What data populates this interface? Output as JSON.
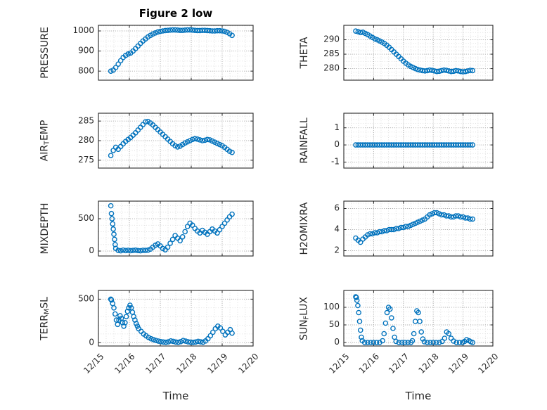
{
  "figure": {
    "title": "Figure 2 low",
    "xlabel": "Time",
    "marker_color": "#0072BD",
    "axis_color": "#262626",
    "grid_color": "#b0b0b0",
    "minor_grid_color": "#d9d9d9",
    "background": "#ffffff",
    "x_minor_step": 0.25
  },
  "chart_data": [
    {
      "name": "pressure",
      "type": "scatter",
      "ylabel": "PRESSURE",
      "xlim": [
        15,
        20
      ],
      "ylim": [
        755,
        1028
      ],
      "xticks": [
        15,
        16,
        17,
        18,
        19,
        20
      ],
      "xtick_labels": [
        "12/15",
        "12/16",
        "12/17",
        "12/18",
        "12/19",
        "12/20"
      ],
      "yticks": [
        800,
        900,
        1000
      ],
      "yminor": 25,
      "x": [
        15.4,
        15.48,
        15.56,
        15.64,
        15.72,
        15.8,
        15.88,
        15.96,
        16.04,
        16.12,
        16.2,
        16.28,
        16.36,
        16.44,
        16.52,
        16.6,
        16.68,
        16.76,
        16.84,
        16.92,
        17,
        17.08,
        17.16,
        17.24,
        17.32,
        17.4,
        17.48,
        17.56,
        17.64,
        17.72,
        17.8,
        17.88,
        17.96,
        18.04,
        18.12,
        18.2,
        18.28,
        18.36,
        18.44,
        18.52,
        18.6,
        18.68,
        18.76,
        18.84,
        18.92,
        19,
        19.08,
        19.16,
        19.24,
        19.32
      ],
      "y": [
        800,
        805,
        818,
        835,
        852,
        868,
        878,
        885,
        890,
        900,
        912,
        925,
        938,
        950,
        960,
        970,
        978,
        985,
        990,
        995,
        998,
        1000,
        1002,
        1003,
        1004,
        1005,
        1005,
        1004,
        1003,
        1003,
        1004,
        1005,
        1005,
        1004,
        1003,
        1002,
        1002,
        1003,
        1003,
        1002,
        1001,
        1000,
        1000,
        1001,
        1001,
        1000,
        998,
        993,
        986,
        978
      ]
    },
    {
      "name": "theta",
      "type": "scatter",
      "ylabel": "THETA",
      "xlim": [
        15,
        20
      ],
      "ylim": [
        276,
        295
      ],
      "xticks": [
        15,
        16,
        17,
        18,
        19,
        20
      ],
      "xtick_labels": [
        "12/15",
        "12/16",
        "12/17",
        "12/18",
        "12/19",
        "12/20"
      ],
      "yticks": [
        280,
        285,
        290
      ],
      "yminor": 1.25,
      "x": [
        15.4,
        15.48,
        15.56,
        15.64,
        15.72,
        15.8,
        15.88,
        15.96,
        16.04,
        16.12,
        16.2,
        16.28,
        16.36,
        16.44,
        16.52,
        16.6,
        16.68,
        16.76,
        16.84,
        16.92,
        17,
        17.08,
        17.16,
        17.24,
        17.32,
        17.4,
        17.48,
        17.56,
        17.64,
        17.72,
        17.8,
        17.88,
        17.96,
        18.04,
        18.12,
        18.2,
        18.28,
        18.36,
        18.44,
        18.52,
        18.6,
        18.68,
        18.76,
        18.84,
        18.92,
        19,
        19.08,
        19.16,
        19.24,
        19.32
      ],
      "y": [
        293,
        292.8,
        292.5,
        292.6,
        292.2,
        291.8,
        291.3,
        290.8,
        290.3,
        290,
        289.6,
        289.2,
        288.7,
        288.1,
        287.4,
        286.6,
        285.8,
        285,
        284.2,
        283.4,
        282.6,
        281.9,
        281.3,
        280.8,
        280.4,
        280,
        279.7,
        279.5,
        279.3,
        279.2,
        279.3,
        279.5,
        279.4,
        279.2,
        279,
        279.1,
        279.3,
        279.5,
        279.4,
        279.2,
        279,
        279.1,
        279.3,
        279.2,
        279,
        278.9,
        279,
        279.2,
        279.4,
        279.3
      ]
    },
    {
      "name": "airtemp",
      "type": "scatter",
      "ylabel": "AIR_TEMP",
      "xlim": [
        15,
        20
      ],
      "ylim": [
        273,
        287
      ],
      "xticks": [
        15,
        16,
        17,
        18,
        19,
        20
      ],
      "xtick_labels": [
        "12/15",
        "12/16",
        "12/17",
        "12/18",
        "12/19",
        "12/20"
      ],
      "yticks": [
        275,
        280,
        285
      ],
      "yminor": 1.25,
      "x": [
        15.4,
        15.48,
        15.56,
        15.64,
        15.72,
        15.8,
        15.88,
        15.96,
        16.04,
        16.12,
        16.2,
        16.28,
        16.36,
        16.44,
        16.52,
        16.6,
        16.68,
        16.76,
        16.84,
        16.92,
        17,
        17.08,
        17.16,
        17.24,
        17.32,
        17.4,
        17.48,
        17.56,
        17.64,
        17.72,
        17.8,
        17.88,
        17.96,
        18.04,
        18.12,
        18.2,
        18.28,
        18.36,
        18.44,
        18.52,
        18.6,
        18.68,
        18.76,
        18.84,
        18.92,
        19,
        19.08,
        19.16,
        19.24,
        19.32
      ],
      "y": [
        276.2,
        277.5,
        278.3,
        277.8,
        278.5,
        279.2,
        279.8,
        280.3,
        280.8,
        281.4,
        282,
        282.7,
        283.4,
        284.1,
        284.8,
        284.9,
        284.5,
        284,
        283.4,
        282.8,
        282.2,
        281.6,
        281,
        280.4,
        279.8,
        279.2,
        278.7,
        278.4,
        278.6,
        279,
        279.4,
        279.7,
        280,
        280.3,
        280.5,
        280.4,
        280.2,
        280,
        280.1,
        280.3,
        280.2,
        279.9,
        279.6,
        279.3,
        279,
        278.7,
        278.3,
        277.8,
        277.3,
        277
      ]
    },
    {
      "name": "rainfall",
      "type": "scatter",
      "ylabel": "RAINFALL",
      "xlim": [
        15,
        20
      ],
      "ylim": [
        -1.35,
        1.85
      ],
      "xticks": [
        15,
        16,
        17,
        18,
        19,
        20
      ],
      "xtick_labels": [
        "12/15",
        "12/16",
        "12/17",
        "12/18",
        "12/19",
        "12/20"
      ],
      "yticks": [
        -1,
        0,
        1
      ],
      "yminor": 0.25,
      "x": [
        15.4,
        15.48,
        15.56,
        15.64,
        15.72,
        15.8,
        15.88,
        15.96,
        16.04,
        16.12,
        16.2,
        16.28,
        16.36,
        16.44,
        16.52,
        16.6,
        16.68,
        16.76,
        16.84,
        16.92,
        17,
        17.08,
        17.16,
        17.24,
        17.32,
        17.4,
        17.48,
        17.56,
        17.64,
        17.72,
        17.8,
        17.88,
        17.96,
        18.04,
        18.12,
        18.2,
        18.28,
        18.36,
        18.44,
        18.52,
        18.6,
        18.68,
        18.76,
        18.84,
        18.92,
        19,
        19.08,
        19.16,
        19.24,
        19.32
      ],
      "y": [
        0,
        0,
        0,
        0,
        0,
        0,
        0,
        0,
        0,
        0,
        0,
        0,
        0,
        0,
        0,
        0,
        0,
        0,
        0,
        0,
        0,
        0,
        0,
        0,
        0,
        0,
        0,
        0,
        0,
        0,
        0,
        0,
        0,
        0,
        0,
        0,
        0,
        0,
        0,
        0,
        0,
        0,
        0,
        0,
        0,
        0,
        0,
        0,
        0,
        0
      ]
    },
    {
      "name": "mixdepth",
      "type": "scatter",
      "ylabel": "MIXDEPTH",
      "xlim": [
        15,
        20
      ],
      "ylim": [
        -76,
        772
      ],
      "xticks": [
        15,
        16,
        17,
        18,
        19,
        20
      ],
      "xtick_labels": [
        "12/15",
        "12/16",
        "12/17",
        "12/18",
        "12/19",
        "12/20"
      ],
      "yticks": [
        0,
        500
      ],
      "yminor": 100,
      "x": [
        15.4,
        15.42,
        15.44,
        15.46,
        15.48,
        15.5,
        15.52,
        15.54,
        15.56,
        15.64,
        15.72,
        15.8,
        15.88,
        15.96,
        16.04,
        16.12,
        16.2,
        16.28,
        16.36,
        16.44,
        16.52,
        16.6,
        16.68,
        16.76,
        16.84,
        16.92,
        17,
        17.08,
        17.16,
        17.24,
        17.32,
        17.4,
        17.48,
        17.56,
        17.64,
        17.72,
        17.8,
        17.88,
        17.96,
        18.04,
        18.12,
        18.2,
        18.28,
        18.36,
        18.44,
        18.52,
        18.6,
        18.68,
        18.76,
        18.84,
        18.92,
        19,
        19.08,
        19.16,
        19.24,
        19.32
      ],
      "y": [
        700,
        580,
        500,
        420,
        340,
        260,
        180,
        100,
        40,
        10,
        5,
        15,
        8,
        12,
        6,
        10,
        14,
        8,
        5,
        12,
        10,
        15,
        30,
        60,
        90,
        110,
        80,
        40,
        20,
        60,
        120,
        180,
        240,
        200,
        160,
        220,
        300,
        380,
        430,
        400,
        350,
        310,
        280,
        320,
        290,
        260,
        300,
        340,
        310,
        280,
        330,
        380,
        430,
        480,
        530,
        570
      ]
    },
    {
      "name": "h2omixra",
      "type": "scatter",
      "ylabel": "H2OMIXRA",
      "xlim": [
        15,
        20
      ],
      "ylim": [
        1.5,
        6.7
      ],
      "xticks": [
        15,
        16,
        17,
        18,
        19,
        20
      ],
      "xtick_labels": [
        "12/15",
        "12/16",
        "12/17",
        "12/18",
        "12/19",
        "12/20"
      ],
      "yticks": [
        2,
        4,
        6
      ],
      "yminor": 0.5,
      "x": [
        15.4,
        15.48,
        15.56,
        15.64,
        15.72,
        15.8,
        15.88,
        15.96,
        16.04,
        16.12,
        16.2,
        16.28,
        16.36,
        16.44,
        16.52,
        16.6,
        16.68,
        16.76,
        16.84,
        16.92,
        17,
        17.08,
        17.16,
        17.24,
        17.32,
        17.4,
        17.48,
        17.56,
        17.64,
        17.72,
        17.8,
        17.88,
        17.96,
        18.04,
        18.12,
        18.2,
        18.28,
        18.36,
        18.44,
        18.52,
        18.6,
        18.68,
        18.76,
        18.84,
        18.92,
        19,
        19.08,
        19.16,
        19.24,
        19.32
      ],
      "y": [
        3.2,
        3,
        2.8,
        3.1,
        3.3,
        3.5,
        3.6,
        3.6,
        3.7,
        3.7,
        3.8,
        3.8,
        3.9,
        3.9,
        4,
        4,
        4,
        4.1,
        4.1,
        4.2,
        4.2,
        4.3,
        4.3,
        4.4,
        4.5,
        4.6,
        4.7,
        4.8,
        4.9,
        5,
        5.2,
        5.4,
        5.5,
        5.6,
        5.6,
        5.5,
        5.4,
        5.4,
        5.3,
        5.3,
        5.2,
        5.2,
        5.3,
        5.3,
        5.2,
        5.2,
        5.1,
        5.1,
        5,
        5
      ]
    },
    {
      "name": "terr_msl",
      "type": "scatter",
      "ylabel": "TERR_MSL",
      "xlim": [
        15,
        20
      ],
      "ylim": [
        -38,
        600
      ],
      "xticks": [
        15,
        16,
        17,
        18,
        19,
        20
      ],
      "xtick_labels": [
        "12/15",
        "12/16",
        "12/17",
        "12/18",
        "12/19",
        "12/20"
      ],
      "yticks": [
        0,
        500
      ],
      "yminor": 100,
      "x": [
        15.4,
        15.42,
        15.46,
        15.5,
        15.54,
        15.58,
        15.62,
        15.66,
        15.7,
        15.74,
        15.78,
        15.82,
        15.86,
        15.9,
        15.94,
        15.98,
        16.02,
        16.06,
        16.1,
        16.14,
        16.18,
        16.22,
        16.26,
        16.3,
        16.38,
        16.46,
        16.54,
        16.62,
        16.7,
        16.78,
        16.86,
        16.94,
        17.02,
        17.1,
        17.18,
        17.26,
        17.34,
        17.42,
        17.5,
        17.58,
        17.66,
        17.74,
        17.82,
        17.9,
        17.98,
        18.06,
        18.14,
        18.22,
        18.3,
        18.38,
        18.46,
        18.54,
        18.62,
        18.7,
        18.78,
        18.86,
        18.94,
        19.02,
        19.1,
        19.18,
        19.26,
        19.32
      ],
      "y": [
        500,
        490,
        450,
        400,
        330,
        260,
        210,
        260,
        310,
        280,
        230,
        190,
        230,
        300,
        360,
        400,
        430,
        400,
        350,
        300,
        260,
        220,
        190,
        160,
        130,
        100,
        80,
        60,
        45,
        35,
        25,
        18,
        12,
        8,
        5,
        10,
        20,
        15,
        8,
        5,
        12,
        25,
        18,
        10,
        6,
        4,
        8,
        15,
        10,
        6,
        20,
        45,
        80,
        120,
        160,
        190,
        170,
        130,
        90,
        120,
        150,
        110
      ]
    },
    {
      "name": "sun_flux",
      "type": "scatter",
      "ylabel": "SUN_FLUX",
      "xlim": [
        15,
        20
      ],
      "ylim": [
        -10,
        148
      ],
      "xticks": [
        15,
        16,
        17,
        18,
        19,
        20
      ],
      "xtick_labels": [
        "12/15",
        "12/16",
        "12/17",
        "12/18",
        "12/19",
        "12/20"
      ],
      "yticks": [
        0,
        50,
        100
      ],
      "yminor": 12.5,
      "x": [
        15.4,
        15.42,
        15.44,
        15.47,
        15.5,
        15.53,
        15.56,
        15.59,
        15.62,
        15.7,
        15.8,
        15.9,
        16,
        16.1,
        16.2,
        16.3,
        16.35,
        16.4,
        16.45,
        16.5,
        16.55,
        16.6,
        16.65,
        16.7,
        16.75,
        16.85,
        16.95,
        17.05,
        17.15,
        17.25,
        17.3,
        17.35,
        17.4,
        17.45,
        17.5,
        17.55,
        17.6,
        17.65,
        17.7,
        17.8,
        17.9,
        18,
        18.1,
        18.2,
        18.3,
        18.38,
        18.45,
        18.52,
        18.6,
        18.68,
        18.78,
        18.88,
        18.98,
        19.05,
        19.12,
        19.2,
        19.26,
        19.32
      ],
      "y": [
        130,
        128,
        120,
        105,
        85,
        60,
        35,
        15,
        5,
        0,
        0,
        0,
        0,
        0,
        0,
        5,
        25,
        55,
        85,
        100,
        95,
        70,
        40,
        15,
        3,
        0,
        0,
        0,
        0,
        0,
        5,
        25,
        60,
        90,
        85,
        60,
        30,
        10,
        2,
        0,
        0,
        0,
        0,
        0,
        3,
        12,
        30,
        25,
        12,
        4,
        0,
        0,
        0,
        3,
        8,
        5,
        2,
        0
      ]
    }
  ]
}
